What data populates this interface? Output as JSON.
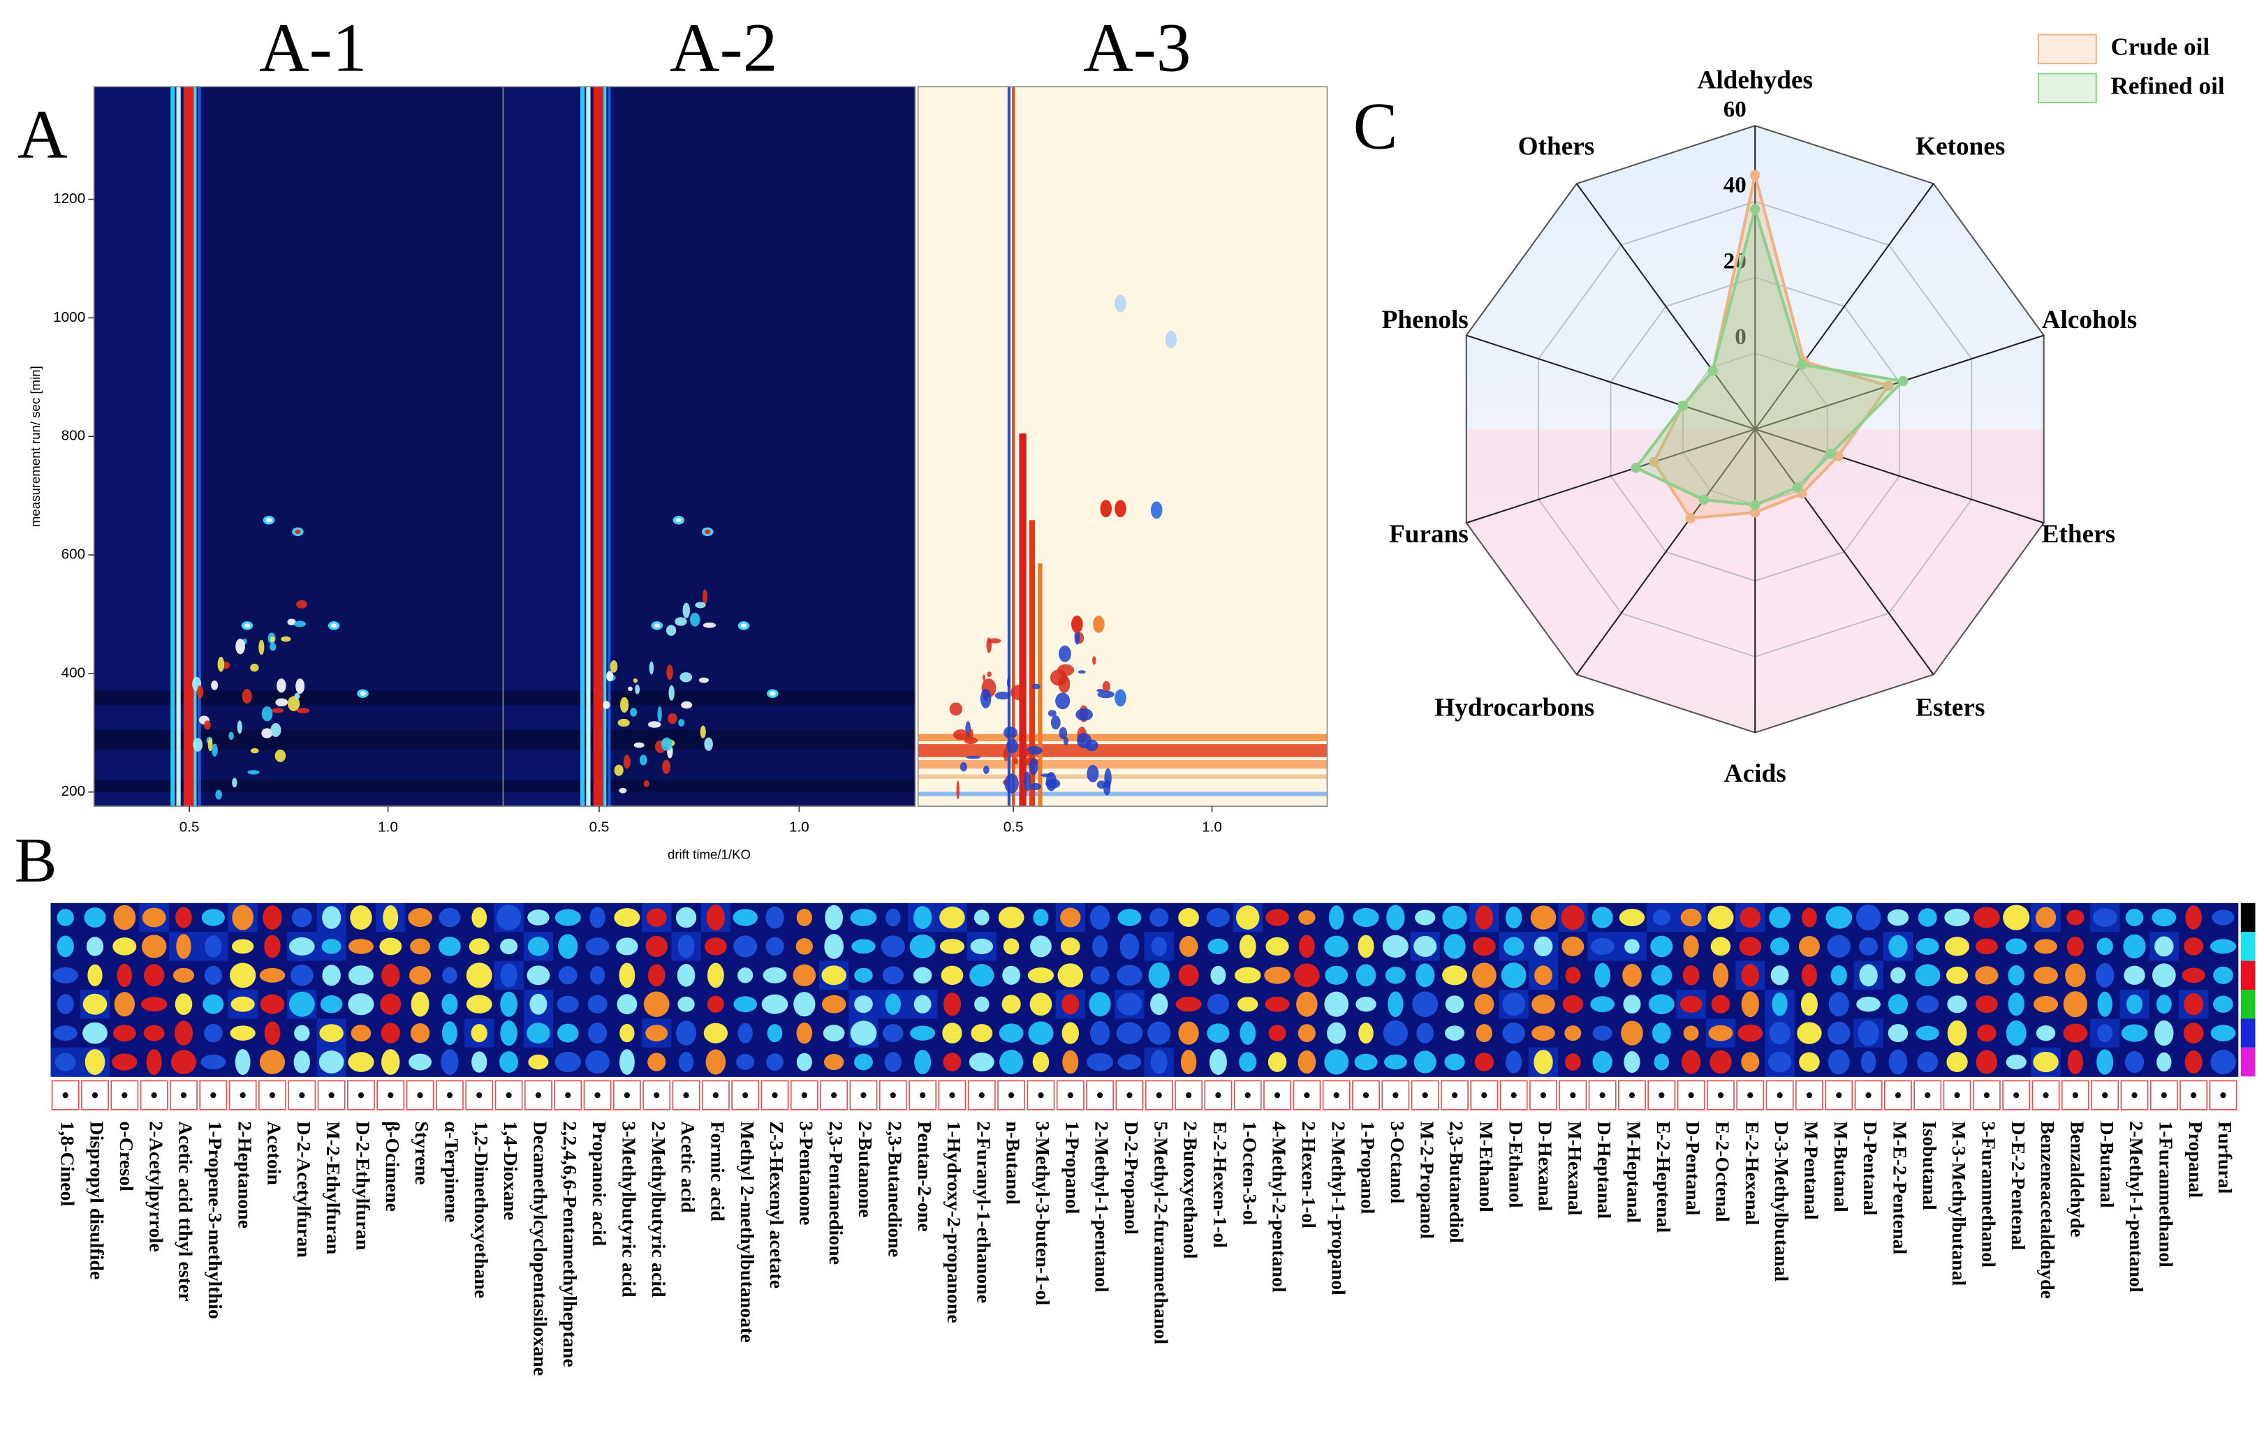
{
  "panel_labels": [
    "A",
    "B",
    "C"
  ],
  "chart_data": [
    {
      "type": "heatmap",
      "title": "A-1",
      "ylabel": "measurement run/ sec [min]",
      "xlim": [
        0.26,
        1.29
      ],
      "xticks": [
        0.5,
        {
          "value": 1,
          "label": "1.0"
        }
      ],
      "ylim": [
        176,
        1390
      ],
      "yticks": [
        200,
        400,
        600,
        800,
        1000,
        1200
      ]
    },
    {
      "type": "heatmap",
      "title": "A-2",
      "xlabel": "drift time/1/KO",
      "xlim": [
        0.26,
        1.29
      ],
      "xticks": [
        0.5,
        {
          "value": 1,
          "label": "1.0"
        }
      ]
    },
    {
      "type": "heatmap",
      "title": "A-3",
      "xlim": [
        0.26,
        1.29
      ],
      "xticks": [
        0.5,
        {
          "value": 1,
          "label": "1.0"
        }
      ]
    },
    {
      "type": "fingerprint",
      "categories": [
        "1,8-Cineol",
        "Dispropyl disulfide",
        "o-Cresol",
        "2-Acetylpyrrole",
        "Acetic acid tthyl ester",
        "1-Propene-3-methylthio",
        "2-Heptanone",
        "Acetoin",
        "D-2-Acetylfuran",
        "M-2-Ethylfuran",
        "D-2-Ethylfuran",
        "β-Ocimene",
        "Styrene",
        "α-Terpinene",
        "1,2-Dimethoxyethane",
        "1,4-Dioxane",
        "Decamethylcyclopentasiloxane",
        "2,2,4,6,6-Pentamethylheptane",
        "Propanoic acid",
        "3-Methylbutyric acid",
        "2-Methylbutyric acid",
        "Acetic acid",
        "Formic acid",
        "Methyl 2-methylbutanoate",
        "Z-3-Hexenyl acetate",
        "3-Pentanone",
        "2,3-Pentanedione",
        "2-Butanone",
        "2,3-Butanedione",
        "Pentan-2-one",
        "1-Hydroxy-2-propanone",
        "2-Furanyl-1-ethanone",
        "n-Butanol",
        "3-Methyl-3-buten-1-ol",
        "1-Propanol",
        "2-Methyl-1-pentanol",
        "D-2-Propanol",
        "5-Methyl-2-furanmethanol",
        "2-Butoxyethanol",
        "E-2-Hexen-1-ol",
        "1-Octen-3-ol",
        "4-Methyl-2-pentanol",
        "2-Hexen-1-ol",
        "2-Methyl-1-propanol",
        "1-Propanol",
        "3-Octanol",
        "M-2-Propanol",
        "2,3-Butanediol",
        "M-Ethanol",
        "D-Ethanol",
        "D-Hexanal",
        "M-Hexanal",
        "D-Heptanal",
        "M-Heptanal",
        "E-2-Heptenal",
        "D-Pentanal",
        "E-2-Octenal",
        "E-2-Hexenal",
        "D-3-Methylbutanal",
        "M-Pentanal",
        "M-Butanal",
        "D-Pentanal",
        "M-E-2-Pentenal",
        "Isobutanal",
        "M-3-Methylbutanal",
        "3-Furanmethanol",
        "D-E-2-Pentenal",
        "Benzeneacetaldehyde",
        "Benzaldehyde",
        "D-Butanal",
        "2-Methyl-1-pentanol",
        "1-Furanmethanol",
        "Propanal",
        "Furfural"
      ]
    },
    {
      "type": "radar",
      "categories": [
        "Aldehydes",
        "Ketones",
        "Alcohols",
        "Ethers",
        "Esters",
        "Acids",
        "Hydrocarbons",
        "Furans",
        "Phenols",
        "Others"
      ],
      "rlim": [
        -20,
        60
      ],
      "rticks": [
        0,
        20,
        40,
        60
      ],
      "series": [
        {
          "name": "Crude oil",
          "color": "#f0b185",
          "values": [
            47,
            2,
            17,
            3,
            1,
            2,
            9,
            8,
            0,
            -1
          ]
        },
        {
          "name": "Refined oil",
          "color": "#8fd08c",
          "values": [
            38,
            1,
            21,
            1,
            -1,
            0,
            3,
            13,
            0,
            -1
          ]
        }
      ],
      "legend": "upper right"
    }
  ]
}
